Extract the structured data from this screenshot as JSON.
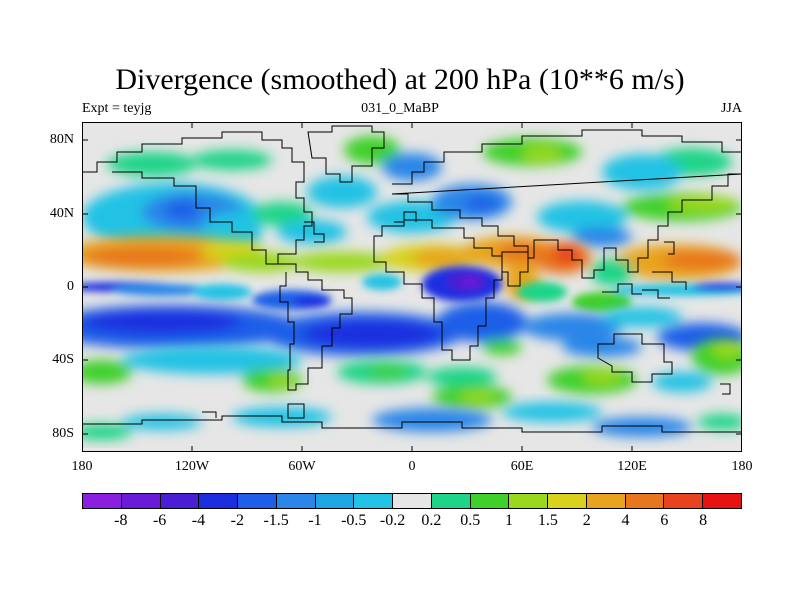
{
  "header": {
    "title": "Divergence (smoothed) at 200 hPa (10**6 m/s)",
    "experiment": "Expt = teyjg",
    "run_id": "031_0_MaBP",
    "season": "JJA"
  },
  "axes": {
    "lat_labels": [
      "80N",
      "40N",
      "0",
      "40S",
      "80S"
    ],
    "lon_labels": [
      "180",
      "120W",
      "60W",
      "0",
      "60E",
      "120E",
      "180"
    ]
  },
  "colorbar": {
    "colors": [
      "#8a1fe0",
      "#6a1ad8",
      "#4a1ed2",
      "#1a2ee0",
      "#1e5ee8",
      "#2a86e8",
      "#1ea6e4",
      "#22c2e4",
      "#e6e6e6",
      "#1ed488",
      "#3fd02a",
      "#9ad81e",
      "#d8d21e",
      "#e8a41e",
      "#e8761e",
      "#e8421e",
      "#e81212"
    ],
    "labels": [
      "-8",
      "-6",
      "-4",
      "-2",
      "-1.5",
      "-1",
      "-0.5",
      "-0.2",
      "0.2",
      "0.5",
      "1",
      "1.5",
      "2",
      "4",
      "6",
      "8"
    ]
  },
  "chart_data": {
    "type": "heatmap",
    "projection": "cylindrical-equidistant",
    "title": "Divergence (smoothed) at 200 hPa (10**6 m/s)",
    "variable": "divergence",
    "level": "200 hPa",
    "units": "10**6 m/s",
    "season": "JJA",
    "lon_range": [
      -180,
      180
    ],
    "lat_range": [
      -90,
      90
    ],
    "levels": [
      -8,
      -6,
      -4,
      -2,
      -1.5,
      -1,
      -0.5,
      -0.2,
      0.2,
      0.5,
      1,
      1.5,
      2,
      4,
      6,
      8
    ],
    "features": [
      {
        "name": "tropical-convergence-band-pacific",
        "lon": [
          -180,
          -60
        ],
        "lat": [
          -30,
          -10
        ],
        "value": -4
      },
      {
        "name": "equatorial-divergence-pacific",
        "lon": [
          -180,
          -120
        ],
        "lat": [
          0,
          12
        ],
        "value": 4
      },
      {
        "name": "equatorial-convergence-pacific",
        "lon": [
          -180,
          -150
        ],
        "lat": [
          -6,
          2
        ],
        "value": -2
      },
      {
        "name": "south-atlantic-convergence",
        "lon": [
          -60,
          10
        ],
        "lat": [
          -28,
          -14
        ],
        "value": -4
      },
      {
        "name": "africa-equatorial-convergence",
        "lon": [
          15,
          45
        ],
        "lat": [
          -8,
          4
        ],
        "value": -8
      },
      {
        "name": "sahel-india-divergence",
        "lon": [
          -20,
          100
        ],
        "lat": [
          8,
          20
        ],
        "value": 4
      },
      {
        "name": "bay-of-bengal-divergence-max",
        "lon": [
          80,
          90
        ],
        "lat": [
          14,
          22
        ],
        "value": 8
      },
      {
        "name": "west-pacific-divergence",
        "lon": [
          120,
          175
        ],
        "lat": [
          5,
          20
        ],
        "value": 2
      },
      {
        "name": "indian-ocean-convergence",
        "lon": [
          50,
          110
        ],
        "lat": [
          -25,
          -10
        ],
        "value": -2
      },
      {
        "name": "south-pacific-divergence",
        "lon": [
          150,
          180
        ],
        "lat": [
          -40,
          -20
        ],
        "value": 1
      }
    ]
  }
}
